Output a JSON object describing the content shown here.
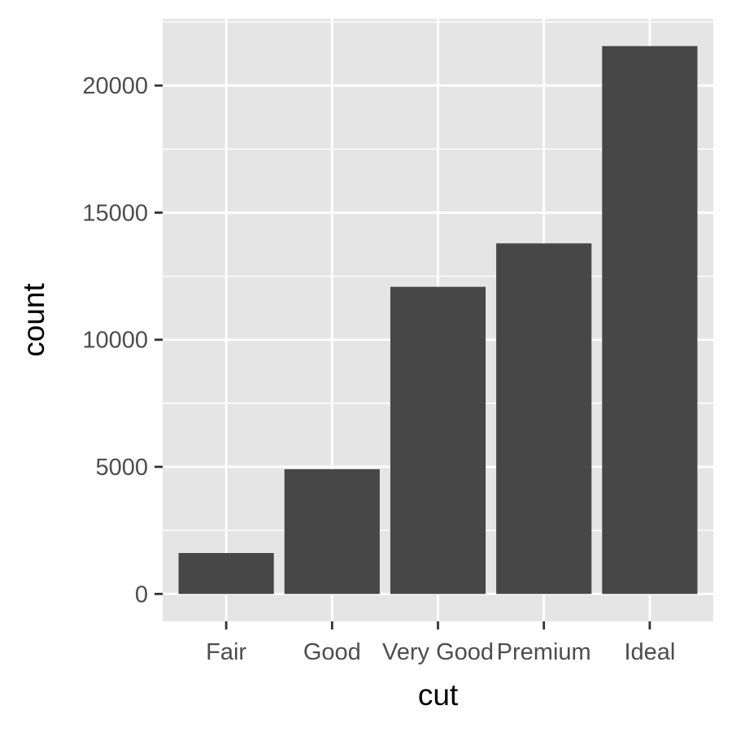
{
  "chart_data": {
    "type": "bar",
    "categories": [
      "Fair",
      "Good",
      "Very Good",
      "Premium",
      "Ideal"
    ],
    "values": [
      1610,
      4906,
      12082,
      13791,
      21551
    ],
    "xlabel": "cut",
    "ylabel": "count",
    "ylim": [
      -1078,
      22629
    ],
    "yticks": [
      0,
      5000,
      10000,
      15000,
      20000
    ],
    "ytick_labels": [
      "0",
      "5000",
      "10000",
      "15000",
      "20000"
    ],
    "grid": true,
    "colors": {
      "panel": "#e5e5e5",
      "grid": "#ffffff",
      "bar": "#474747",
      "axis_text": "#4d4d4d",
      "tick": "#333333",
      "title_text": "#000000"
    }
  }
}
